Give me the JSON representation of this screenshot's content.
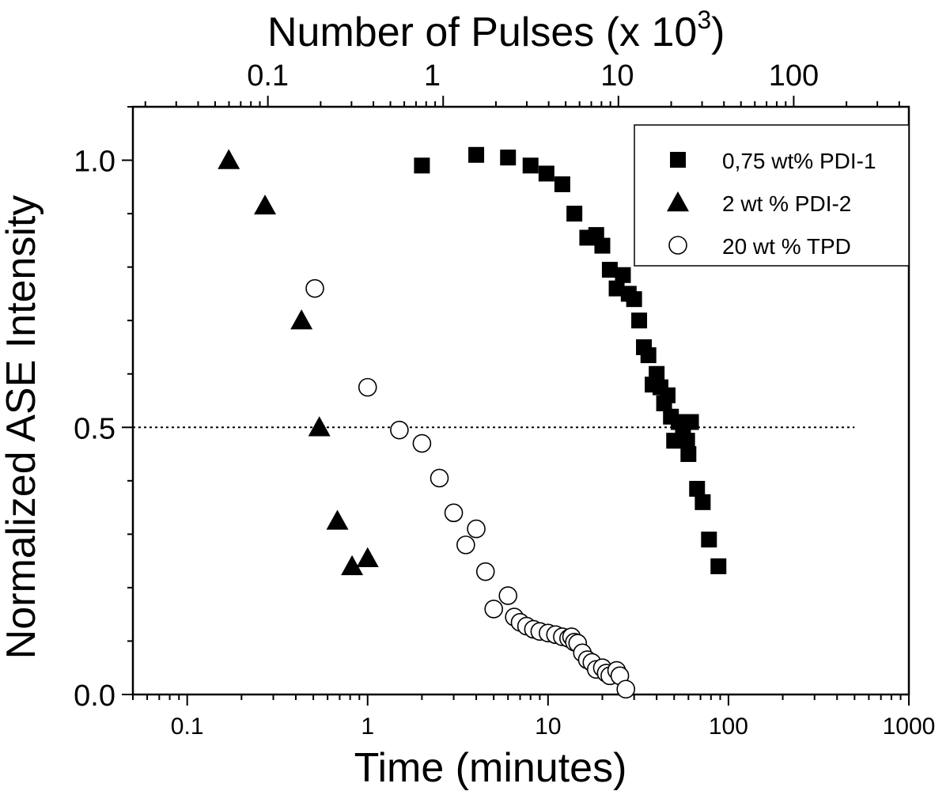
{
  "chart_data": {
    "type": "scatter",
    "xlabel": "Time (minutes)",
    "ylabel": "Normalized ASE Intensity",
    "top_xlabel": "Number of Pulses (x 10",
    "top_xlabel_sup": "3",
    "top_xlabel_close": ")",
    "xscale": "log",
    "xlim": [
      0.05,
      1000
    ],
    "ylim": [
      0.0,
      1.1
    ],
    "x_ticks": [
      {
        "value": 0.1,
        "label": "0.1"
      },
      {
        "value": 1,
        "label": "1"
      },
      {
        "value": 10,
        "label": "10"
      },
      {
        "value": 100,
        "label": "100"
      },
      {
        "value": 1000,
        "label": "1000"
      }
    ],
    "y_ticks": [
      {
        "value": 0.0,
        "label": "0.0"
      },
      {
        "value": 0.5,
        "label": "0.5"
      },
      {
        "value": 1.0,
        "label": "1.0"
      }
    ],
    "top_ticks": [
      {
        "time_value": 0.28,
        "label": "0.1"
      },
      {
        "time_value": 2.28,
        "label": "1"
      },
      {
        "time_value": 24.2,
        "label": "10"
      },
      {
        "time_value": 230,
        "label": "100"
      }
    ],
    "reference_line": {
      "y": 0.5,
      "x_from": 0.05,
      "x_to": 500,
      "style": "dotted"
    },
    "legend": {
      "position": "top-right"
    },
    "series": [
      {
        "name": "0,75 wt% PDI-1",
        "marker": "square",
        "filled": true,
        "points": [
          [
            2.0,
            0.99
          ],
          [
            4.0,
            1.01
          ],
          [
            6.0,
            1.005
          ],
          [
            8.0,
            0.99
          ],
          [
            9.8,
            0.975
          ],
          [
            12.0,
            0.955
          ],
          [
            14.0,
            0.9
          ],
          [
            16.5,
            0.855
          ],
          [
            18.5,
            0.86
          ],
          [
            20.0,
            0.84
          ],
          [
            22.0,
            0.795
          ],
          [
            24.0,
            0.76
          ],
          [
            26.0,
            0.785
          ],
          [
            28.0,
            0.75
          ],
          [
            30.0,
            0.74
          ],
          [
            32.0,
            0.7
          ],
          [
            34.0,
            0.65
          ],
          [
            36.0,
            0.635
          ],
          [
            38.0,
            0.58
          ],
          [
            40.0,
            0.6
          ],
          [
            42.0,
            0.575
          ],
          [
            44.0,
            0.545
          ],
          [
            46.0,
            0.56
          ],
          [
            48.0,
            0.52
          ],
          [
            50.0,
            0.475
          ],
          [
            53.0,
            0.51
          ],
          [
            56.0,
            0.49
          ],
          [
            59.0,
            0.475
          ],
          [
            62.0,
            0.51
          ],
          [
            60.0,
            0.45
          ],
          [
            67.0,
            0.385
          ],
          [
            72.0,
            0.36
          ],
          [
            78.0,
            0.29
          ],
          [
            88.0,
            0.24
          ]
        ]
      },
      {
        "name": "2 wt % PDI-2",
        "marker": "triangle",
        "filled": true,
        "points": [
          [
            0.17,
            1.0
          ],
          [
            0.27,
            0.915
          ],
          [
            0.43,
            0.7
          ],
          [
            0.54,
            0.5
          ],
          [
            0.68,
            0.325
          ],
          [
            0.82,
            0.24
          ],
          [
            1.0,
            0.255
          ]
        ]
      },
      {
        "name": "20 wt % TPD",
        "marker": "circle",
        "filled": false,
        "points": [
          [
            0.51,
            0.76
          ],
          [
            1.0,
            0.575
          ],
          [
            1.5,
            0.495
          ],
          [
            2.0,
            0.47
          ],
          [
            2.5,
            0.405
          ],
          [
            3.0,
            0.34
          ],
          [
            3.5,
            0.28
          ],
          [
            4.0,
            0.31
          ],
          [
            4.5,
            0.23
          ],
          [
            5.0,
            0.16
          ],
          [
            6.0,
            0.185
          ],
          [
            6.5,
            0.145
          ],
          [
            7.0,
            0.135
          ],
          [
            7.6,
            0.128
          ],
          [
            8.3,
            0.122
          ],
          [
            9.0,
            0.118
          ],
          [
            10.0,
            0.115
          ],
          [
            11.0,
            0.112
          ],
          [
            12.0,
            0.108
          ],
          [
            13.0,
            0.105
          ],
          [
            13.5,
            0.108
          ],
          [
            14.0,
            0.098
          ],
          [
            14.6,
            0.096
          ],
          [
            15.5,
            0.078
          ],
          [
            16.5,
            0.065
          ],
          [
            17.5,
            0.06
          ],
          [
            18.5,
            0.047
          ],
          [
            20.0,
            0.05
          ],
          [
            21.0,
            0.04
          ],
          [
            22.0,
            0.035
          ],
          [
            24.0,
            0.045
          ],
          [
            25.0,
            0.035
          ],
          [
            27.0,
            0.01
          ]
        ]
      }
    ]
  }
}
